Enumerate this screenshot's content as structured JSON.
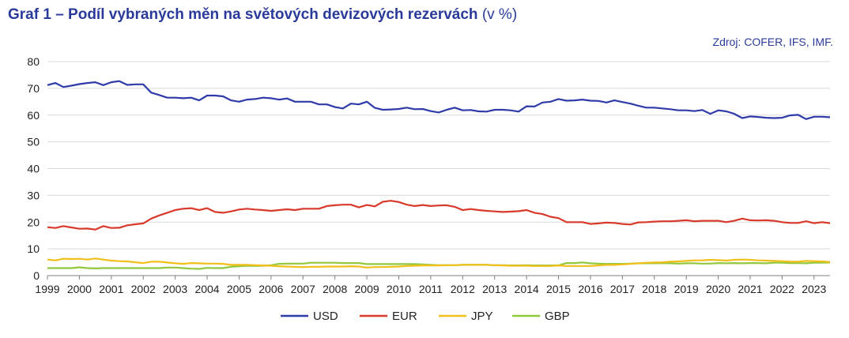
{
  "title": {
    "bold": "Graf 1 – Podíl vybraných měn na světových devizových rezervách",
    "unit": "(v %)"
  },
  "source": "Zdroj:  COFER, IFS, IMF.",
  "chart_data": {
    "type": "line",
    "ylim": [
      0,
      80
    ],
    "yticks": [
      "0",
      "10",
      "20",
      "30",
      "40",
      "50",
      "60",
      "70",
      "80"
    ],
    "xticks": [
      "1999",
      "2000",
      "2001",
      "2002",
      "2003",
      "2004",
      "2005",
      "2006",
      "2007",
      "2008",
      "2009",
      "2010",
      "2011",
      "2012",
      "2013",
      "2014",
      "2015",
      "2016",
      "2017",
      "2018",
      "2019",
      "2020",
      "2021",
      "2022",
      "2023"
    ],
    "x_start": 1999.0,
    "x_step": 0.25,
    "grid": "horizontal",
    "legend": "bottom",
    "series": [
      {
        "name": "USD",
        "color": "#2e3ba8",
        "values": [
          71.2,
          72.0,
          70.5,
          71.0,
          71.6,
          72.0,
          72.3,
          71.2,
          72.3,
          72.7,
          71.3,
          71.5,
          71.5,
          68.4,
          67.5,
          66.5,
          66.5,
          66.3,
          66.5,
          65.5,
          67.3,
          67.3,
          67.0,
          65.5,
          65.0,
          65.8,
          66.0,
          66.5,
          66.3,
          65.8,
          66.2,
          65.0,
          65.0,
          65.0,
          64.0,
          64.0,
          63.0,
          62.5,
          64.3,
          64.0,
          65.0,
          62.7,
          62.0,
          62.1,
          62.3,
          62.8,
          62.2,
          62.3,
          61.5,
          61.0,
          62.0,
          62.8,
          61.8,
          61.9,
          61.4,
          61.3,
          62.0,
          62.0,
          61.8,
          61.3,
          63.3,
          63.2,
          64.7,
          65.0,
          66.0,
          65.4,
          65.5,
          65.8,
          65.4,
          65.3,
          64.7,
          65.5,
          64.9,
          64.3,
          63.5,
          62.8,
          62.8,
          62.5,
          62.2,
          61.8,
          61.8,
          61.5,
          61.9,
          60.5,
          61.8,
          61.4,
          60.5,
          58.9,
          59.5,
          59.3,
          59.0,
          58.9,
          59.0,
          59.9,
          60.1,
          58.5,
          59.4,
          59.4,
          59.2
        ]
      },
      {
        "name": "EUR",
        "color": "#d9392b",
        "values": [
          18.1,
          17.8,
          18.5,
          18.0,
          17.5,
          17.6,
          17.2,
          18.5,
          17.8,
          17.9,
          18.8,
          19.2,
          19.5,
          21.3,
          22.5,
          23.5,
          24.5,
          25.0,
          25.2,
          24.5,
          25.2,
          23.8,
          23.5,
          24.0,
          24.7,
          25.0,
          24.7,
          24.5,
          24.2,
          24.5,
          24.8,
          24.5,
          25.0,
          25.0,
          25.0,
          26.0,
          26.3,
          26.5,
          26.5,
          25.5,
          26.4,
          25.9,
          27.6,
          28.0,
          27.5,
          26.5,
          26.0,
          26.4,
          26.0,
          26.2,
          26.3,
          25.7,
          24.5,
          24.9,
          24.5,
          24.2,
          24.0,
          23.8,
          23.9,
          24.1,
          24.5,
          23.5,
          23.0,
          22.0,
          21.5,
          20.0,
          20.0,
          20.0,
          19.3,
          19.5,
          19.8,
          19.7,
          19.3,
          19.1,
          19.9,
          20.0,
          20.2,
          20.3,
          20.3,
          20.5,
          20.7,
          20.3,
          20.5,
          20.5,
          20.5,
          20.0,
          20.5,
          21.3,
          20.7,
          20.6,
          20.7,
          20.5,
          20.0,
          19.7,
          19.7,
          20.3,
          19.6,
          20.0,
          19.6
        ]
      },
      {
        "name": "JPY",
        "color": "#f0bf1a",
        "values": [
          6.0,
          5.7,
          6.3,
          6.2,
          6.3,
          6.0,
          6.4,
          6.0,
          5.6,
          5.4,
          5.3,
          5.0,
          4.7,
          5.2,
          5.2,
          4.9,
          4.6,
          4.4,
          4.7,
          4.6,
          4.5,
          4.5,
          4.4,
          4.0,
          4.0,
          4.0,
          3.9,
          3.8,
          3.7,
          3.5,
          3.4,
          3.3,
          3.2,
          3.3,
          3.3,
          3.4,
          3.4,
          3.4,
          3.5,
          3.4,
          3.0,
          3.2,
          3.2,
          3.3,
          3.4,
          3.6,
          3.7,
          3.8,
          3.8,
          3.8,
          3.9,
          3.9,
          4.0,
          4.0,
          4.0,
          4.0,
          3.9,
          3.8,
          3.7,
          3.7,
          3.7,
          3.6,
          3.6,
          3.6,
          3.8,
          3.6,
          3.6,
          3.6,
          3.6,
          3.8,
          4.0,
          4.0,
          4.2,
          4.4,
          4.6,
          4.8,
          4.9,
          5.0,
          5.2,
          5.3,
          5.5,
          5.7,
          5.7,
          5.9,
          5.8,
          5.6,
          5.9,
          6.0,
          5.9,
          5.7,
          5.6,
          5.5,
          5.4,
          5.2,
          5.2,
          5.5,
          5.4,
          5.3,
          5.1
        ]
      },
      {
        "name": "GBP",
        "color": "#92c83e",
        "values": [
          2.8,
          2.8,
          2.8,
          2.8,
          3.1,
          2.8,
          2.7,
          2.8,
          2.8,
          2.8,
          2.8,
          2.8,
          2.8,
          2.8,
          2.8,
          3.0,
          3.0,
          2.8,
          2.6,
          2.5,
          2.9,
          2.8,
          2.8,
          3.3,
          3.5,
          3.7,
          3.6,
          3.7,
          3.9,
          4.4,
          4.5,
          4.5,
          4.5,
          4.8,
          4.8,
          4.8,
          4.8,
          4.7,
          4.7,
          4.7,
          4.3,
          4.3,
          4.3,
          4.3,
          4.3,
          4.3,
          4.3,
          4.2,
          4.0,
          3.9,
          3.9,
          3.9,
          4.0,
          4.0,
          4.0,
          4.0,
          3.9,
          3.9,
          3.8,
          3.8,
          3.9,
          3.8,
          3.8,
          3.8,
          3.8,
          4.7,
          4.7,
          4.9,
          4.6,
          4.5,
          4.4,
          4.4,
          4.4,
          4.5,
          4.6,
          4.6,
          4.6,
          4.7,
          4.6,
          4.5,
          4.6,
          4.6,
          4.5,
          4.5,
          4.7,
          4.6,
          4.7,
          4.6,
          4.7,
          4.7,
          4.6,
          4.8,
          4.8,
          4.7,
          4.7,
          4.6,
          4.8,
          4.8,
          4.9
        ]
      }
    ]
  }
}
